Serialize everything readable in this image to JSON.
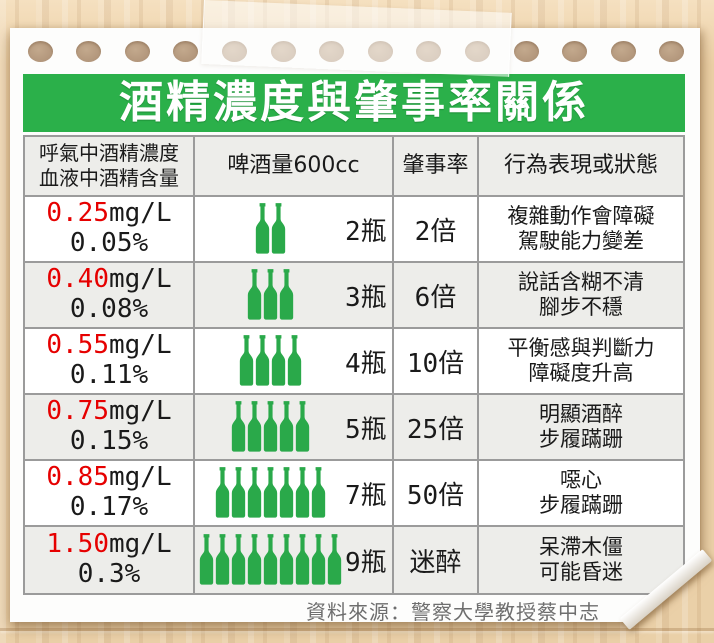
{
  "page": {
    "title": "酒精濃度與肇事率關係",
    "source": "資料來源：警察大學教授蔡中志"
  },
  "icons": {
    "bottle_icon": "beer-bottle",
    "binder_holes": "punched-paper-holes",
    "tape": "adhesive-tape-strip"
  },
  "colors": {
    "banner_green": "#2bb04a",
    "bottle_green": "#2aa94a",
    "value_red": "#e60000",
    "header_bg": "#ededea",
    "row_alt_bg": "#ededea",
    "border_gray": "#9b9b9b",
    "source_gray": "#6e6e6e",
    "wood_base": "#ecd0a6"
  },
  "table": {
    "headers": {
      "col1_line1": "呼氣中酒精濃度",
      "col1_line2": "血液中酒精含量",
      "col2": "啤酒量600cc",
      "col3": "肇事率",
      "col4": "行為表現或狀態"
    },
    "rows": [
      {
        "breath": "0.25",
        "breath_unit": "mg/L",
        "blood": "0.05%",
        "bottles": 2,
        "bottle_label": "2瓶",
        "rate": "2倍",
        "behavior_line1": "複雜動作會障礙",
        "behavior_line2": "駕駛能力變差"
      },
      {
        "breath": "0.40",
        "breath_unit": "mg/L",
        "blood": "0.08%",
        "bottles": 3,
        "bottle_label": "3瓶",
        "rate": "6倍",
        "behavior_line1": "說話含糊不清",
        "behavior_line2": "腳步不穩"
      },
      {
        "breath": "0.55",
        "breath_unit": "mg/L",
        "blood": "0.11%",
        "bottles": 4,
        "bottle_label": "4瓶",
        "rate": "10倍",
        "behavior_line1": "平衡感與判斷力",
        "behavior_line2": "障礙度升高"
      },
      {
        "breath": "0.75",
        "breath_unit": "mg/L",
        "blood": "0.15%",
        "bottles": 5,
        "bottle_label": "5瓶",
        "rate": "25倍",
        "behavior_line1": "明顯酒醉",
        "behavior_line2": "步履蹣跚"
      },
      {
        "breath": "0.85",
        "breath_unit": "mg/L",
        "blood": "0.17%",
        "bottles": 7,
        "bottle_label": "7瓶",
        "rate": "50倍",
        "behavior_line1": "噁心",
        "behavior_line2": "步履蹣跚"
      },
      {
        "breath": "1.50",
        "breath_unit": "mg/L",
        "blood": "0.3%",
        "bottles": 9,
        "bottle_label": "9瓶",
        "rate": "迷醉",
        "behavior_line1": "呆滯木僵",
        "behavior_line2": "可能昏迷"
      }
    ]
  }
}
